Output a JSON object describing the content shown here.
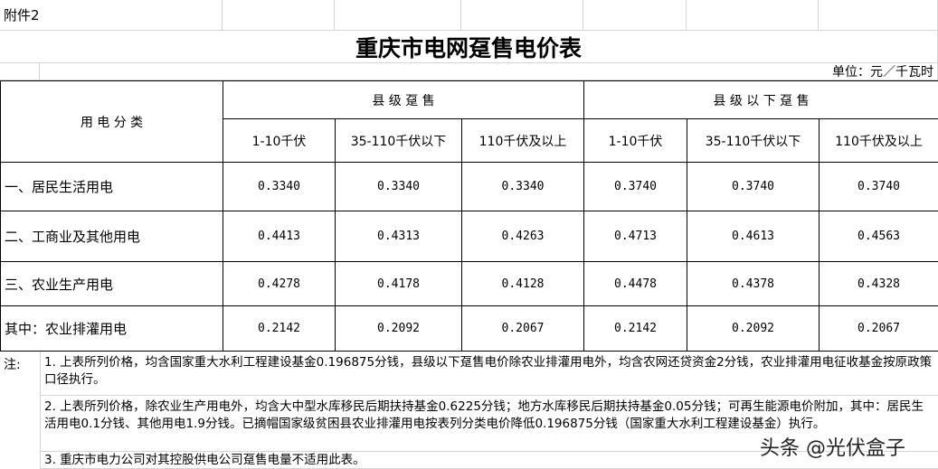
{
  "attachment": "附件2",
  "title": "重庆市电网趸售电价表",
  "unit": "单位：元／千瓦时",
  "header": {
    "category": "用 电 分 类",
    "group1": "县 级 趸 售",
    "group2": "县 级 以 下 趸 售",
    "cols": [
      "1-10千伏",
      "35-110千伏以下",
      "110千伏及以上",
      "1-10千伏",
      "35-110千伏以下",
      "110千伏及以上"
    ]
  },
  "rows": [
    {
      "label": "一、居民生活用电",
      "values": [
        "0.3340",
        "0.3340",
        "0.3340",
        "0.3740",
        "0.3740",
        "0.3740"
      ]
    },
    {
      "label": "二、工商业及其他用电",
      "values": [
        "0.4413",
        "0.4313",
        "0.4263",
        "0.4713",
        "0.4613",
        "0.4563"
      ]
    },
    {
      "label": "三、农业生产用电",
      "values": [
        "0.4278",
        "0.4178",
        "0.4128",
        "0.4478",
        "0.4378",
        "0.4328"
      ]
    },
    {
      "label": "其中：农业排灌用电",
      "values": [
        "0.2142",
        "0.2092",
        "0.2067",
        "0.2142",
        "0.2092",
        "0.2067"
      ]
    }
  ],
  "notes": {
    "label": "注:",
    "items": [
      "1. 上表所列价格，均含国家重大水利工程建设基金0.196875分钱，县级以下趸售电价除农业排灌用电外，均含农网还贷资金2分钱，农业排灌用电征收基金按原政策口径执行。",
      "2. 上表所列价格，除农业生产用电外，均含大中型水库移民后期扶持基金0.6225分钱；地方水库移民后期扶持基金0.05分钱；可再生能源电价附加，其中：居民生活用电0.1分钱、其他用电1.9分钱。已摘帽国家级贫困县农业排灌用电按表列分类电价降低0.196875分钱（国家重大水利工程建设基金）执行。",
      "3. 重庆市电力公司对其控股供电公司趸售电量不适用此表。"
    ]
  },
  "watermark": "头条 @光伏盒子"
}
